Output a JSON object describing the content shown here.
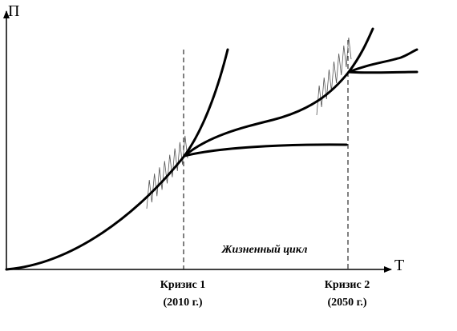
{
  "axes": {
    "y_label": "П",
    "x_label": "Т"
  },
  "annotation": "Жизненный цикл",
  "crises": [
    {
      "label": "Кризис 1",
      "date": "(2010 г.)"
    },
    {
      "label": "Кризис 2",
      "date": "(2050 г.)"
    }
  ]
}
